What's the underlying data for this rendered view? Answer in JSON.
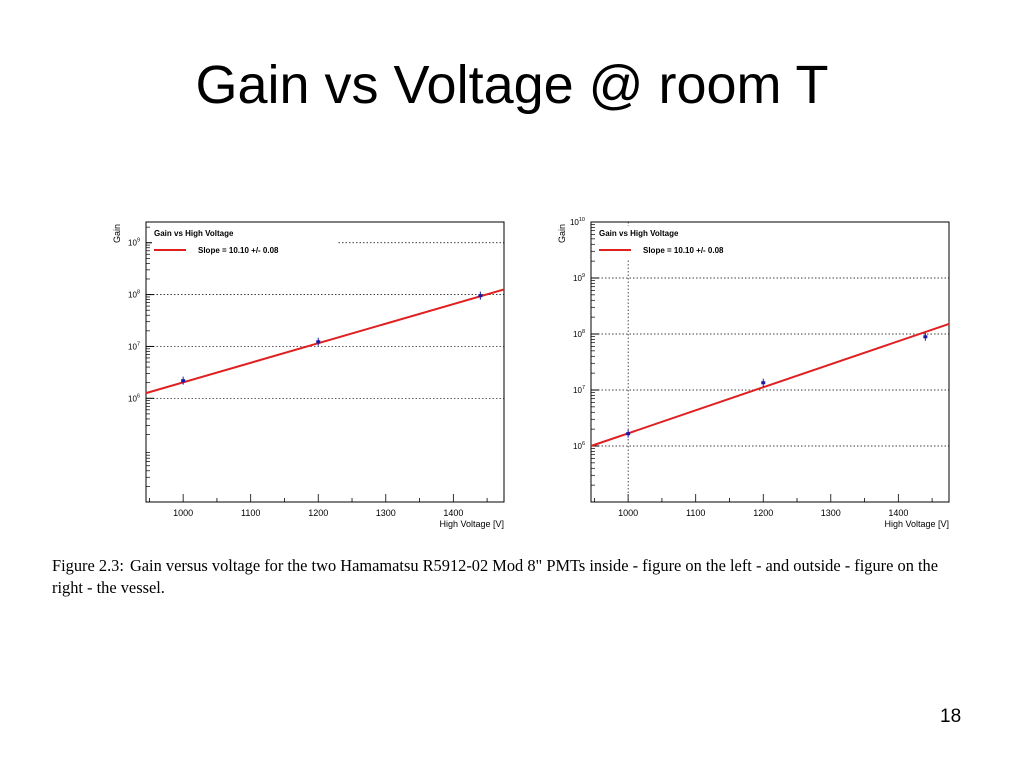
{
  "slide": {
    "title": "Gain vs Voltage @ room T",
    "page_number": "18"
  },
  "caption": {
    "label": "Figure 2.3:",
    "text": "Gain versus voltage for the two Hamamatsu R5912-02 Mod 8\" PMTs inside - figure on the left - and outside - figure on the right - the vessel."
  },
  "colors": {
    "fit_line": "#e02020",
    "data_points": "#1a1aa8",
    "grid": "#000000"
  },
  "chart_data": [
    {
      "type": "scatter",
      "title": "",
      "xlabel": "High Voltage [V]",
      "ylabel": "Gain",
      "y_scale": "log",
      "xlim": [
        945,
        1475
      ],
      "ylim_exp": [
        4.0,
        9.4
      ],
      "x_ticks": [
        1000,
        1100,
        1200,
        1300,
        1400
      ],
      "y_ticks": [
        {
          "base": "10",
          "exp": "9",
          "value": 9
        },
        {
          "base": "10",
          "exp": "8",
          "value": 8
        },
        {
          "base": "10",
          "exp": "7",
          "value": 7
        },
        {
          "base": "10",
          "exp": "6",
          "value": 6
        }
      ],
      "grid": true,
      "legend": {
        "position": "top-left",
        "header": "Gain vs High Voltage",
        "entry": "Slope = 10.10 +/- 0.08"
      },
      "series": [
        {
          "kind": "points",
          "x": [
            1000,
            1200,
            1440
          ],
          "log10_y": [
            6.34,
            7.09,
            7.98
          ]
        },
        {
          "kind": "fit",
          "x": [
            945,
            1475
          ],
          "log10_y": [
            6.1,
            8.1
          ]
        }
      ]
    },
    {
      "type": "scatter",
      "title": "",
      "xlabel": "High Voltage [V]",
      "ylabel": "Gain",
      "y_scale": "log",
      "xlim": [
        945,
        1475
      ],
      "ylim_exp": [
        5.0,
        10.0
      ],
      "x_ticks": [
        1000,
        1100,
        1200,
        1300,
        1400
      ],
      "y_ticks": [
        {
          "base": "10",
          "exp": "10",
          "value": 10
        },
        {
          "base": "10",
          "exp": "9",
          "value": 9
        },
        {
          "base": "10",
          "exp": "8",
          "value": 8
        },
        {
          "base": "10",
          "exp": "7",
          "value": 7
        },
        {
          "base": "10",
          "exp": "6",
          "value": 6
        }
      ],
      "grid": true,
      "legend": {
        "position": "top-left",
        "header": "Gain vs High Voltage",
        "entry": "Slope = 10.10 +/- 0.08"
      },
      "series": [
        {
          "kind": "points",
          "x": [
            1000,
            1200,
            1440
          ],
          "log10_y": [
            6.22,
            7.13,
            7.95
          ]
        },
        {
          "kind": "fit",
          "x": [
            945,
            1475
          ],
          "log10_y": [
            6.0,
            8.18
          ]
        }
      ]
    }
  ]
}
